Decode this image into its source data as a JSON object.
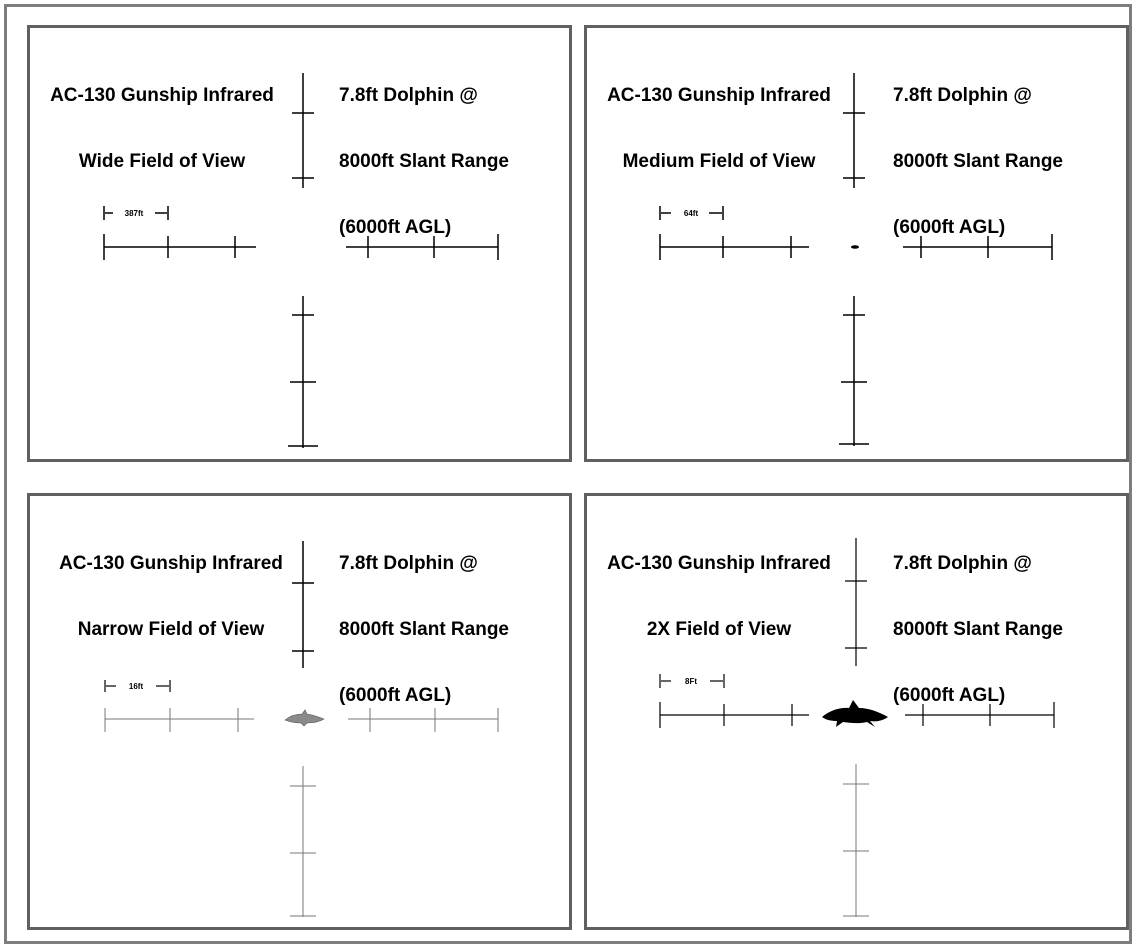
{
  "panels": [
    {
      "title_line1": "AC-130 Gunship Infrared",
      "title_line2": "Wide Field of View",
      "subject_line1": "7.8ft Dolphin @",
      "subject_line2": "8000ft Slant Range",
      "subject_line3": "(6000ft AGL)",
      "scale_label": "387ft",
      "dolphin_visible": false
    },
    {
      "title_line1": "AC-130 Gunship Infrared",
      "title_line2": "Medium Field of View",
      "subject_line1": "7.8ft Dolphin @",
      "subject_line2": "8000ft Slant Range",
      "subject_line3": "(6000ft AGL)",
      "scale_label": "64ft",
      "dolphin_visible": true
    },
    {
      "title_line1": "AC-130 Gunship Infrared",
      "title_line2": "Narrow Field of View",
      "subject_line1": "7.8ft Dolphin @",
      "subject_line2": "8000ft Slant Range",
      "subject_line3": "(6000ft AGL)",
      "scale_label": "16ft",
      "dolphin_visible": true
    },
    {
      "title_line1": "AC-130 Gunship Infrared",
      "title_line2": "2X Field of View",
      "subject_line1": "7.8ft Dolphin @",
      "subject_line2": "8000ft Slant Range",
      "subject_line3": "(6000ft AGL)",
      "scale_label": "8Ft",
      "dolphin_visible": true
    }
  ],
  "colors": {
    "frame": "#7d7d7d",
    "panel_border": "#606060",
    "reticle_dark": "#000000",
    "reticle_light": "#777777",
    "dolphin_gray": "#8a8a8a",
    "dolphin_black": "#000000"
  }
}
